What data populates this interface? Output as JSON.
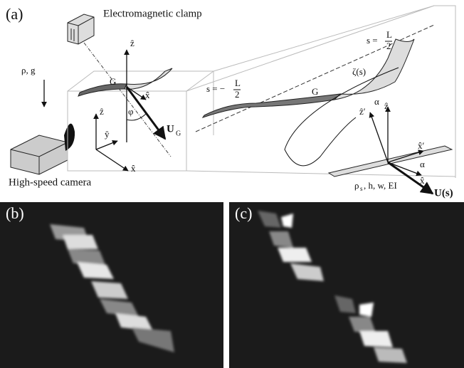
{
  "panel_a": {
    "label": "(a)",
    "clamp_label": "Electromagnetic clamp",
    "camera_label": "High-speed camera",
    "fluid_label": "ρ, g",
    "left": {
      "center": "G",
      "z": "ẑ",
      "x": "x̂",
      "angle": "φ",
      "velocity": "U",
      "velocity_sub": "G",
      "frame_z": "ẑ",
      "frame_y": "ŷ",
      "frame_x": "x̂"
    },
    "right": {
      "end_left": {
        "prefix": "s = −",
        "numerator": "L",
        "denominator": "2"
      },
      "end_right": {
        "prefix": "s = ",
        "numerator": "L",
        "denominator": "2"
      },
      "center": "G",
      "twist": "ζ(s)",
      "z_prime": "ẑ′",
      "z": "ẑ",
      "alpha_top": "α",
      "x_prime": "x̂′",
      "alpha_bottom": "α",
      "x": "x̂",
      "properties": "ρ",
      "properties_sub": "s",
      "properties_rest": ", h, w, EI",
      "velocity": "U(s)"
    }
  },
  "panel_b": {
    "label": "(b)"
  },
  "panel_c": {
    "label": "(c)"
  }
}
